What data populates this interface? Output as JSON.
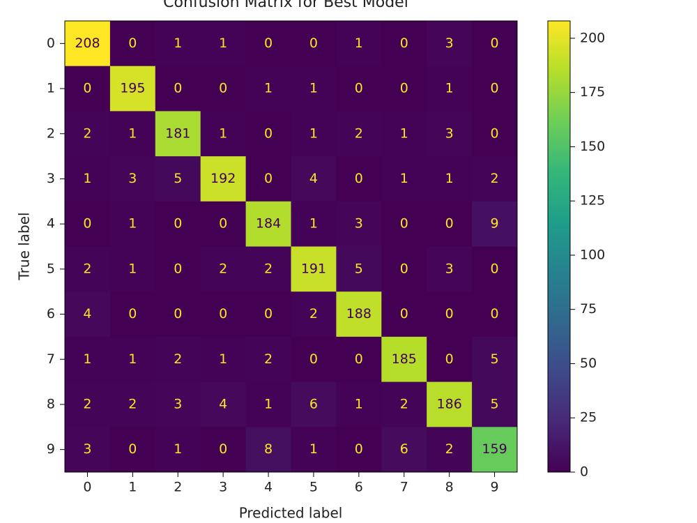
{
  "chart_data": {
    "type": "heatmap",
    "title": "Confusion Matrix for Best Model",
    "xlabel": "Predicted label",
    "ylabel": "True label",
    "x_categories": [
      "0",
      "1",
      "2",
      "3",
      "4",
      "5",
      "6",
      "7",
      "8",
      "9"
    ],
    "y_categories": [
      "0",
      "1",
      "2",
      "3",
      "4",
      "5",
      "6",
      "7",
      "8",
      "9"
    ],
    "values": [
      [
        208,
        0,
        1,
        1,
        0,
        0,
        1,
        0,
        3,
        0
      ],
      [
        0,
        195,
        0,
        0,
        1,
        1,
        0,
        0,
        1,
        0
      ],
      [
        2,
        1,
        181,
        1,
        0,
        1,
        2,
        1,
        3,
        0
      ],
      [
        1,
        3,
        5,
        192,
        0,
        4,
        0,
        1,
        1,
        2
      ],
      [
        0,
        1,
        0,
        0,
        184,
        1,
        3,
        0,
        0,
        9
      ],
      [
        2,
        1,
        0,
        2,
        2,
        191,
        5,
        0,
        3,
        0
      ],
      [
        4,
        0,
        0,
        0,
        0,
        2,
        188,
        0,
        0,
        0
      ],
      [
        1,
        1,
        2,
        1,
        2,
        0,
        0,
        185,
        0,
        5
      ],
      [
        2,
        2,
        3,
        4,
        1,
        6,
        1,
        2,
        186,
        5
      ],
      [
        3,
        0,
        1,
        0,
        8,
        1,
        0,
        6,
        2,
        159
      ]
    ],
    "colormap": "viridis",
    "clim": [
      0,
      208
    ],
    "colorbar_ticks": [
      0,
      25,
      50,
      75,
      100,
      125,
      150,
      175,
      200
    ]
  }
}
